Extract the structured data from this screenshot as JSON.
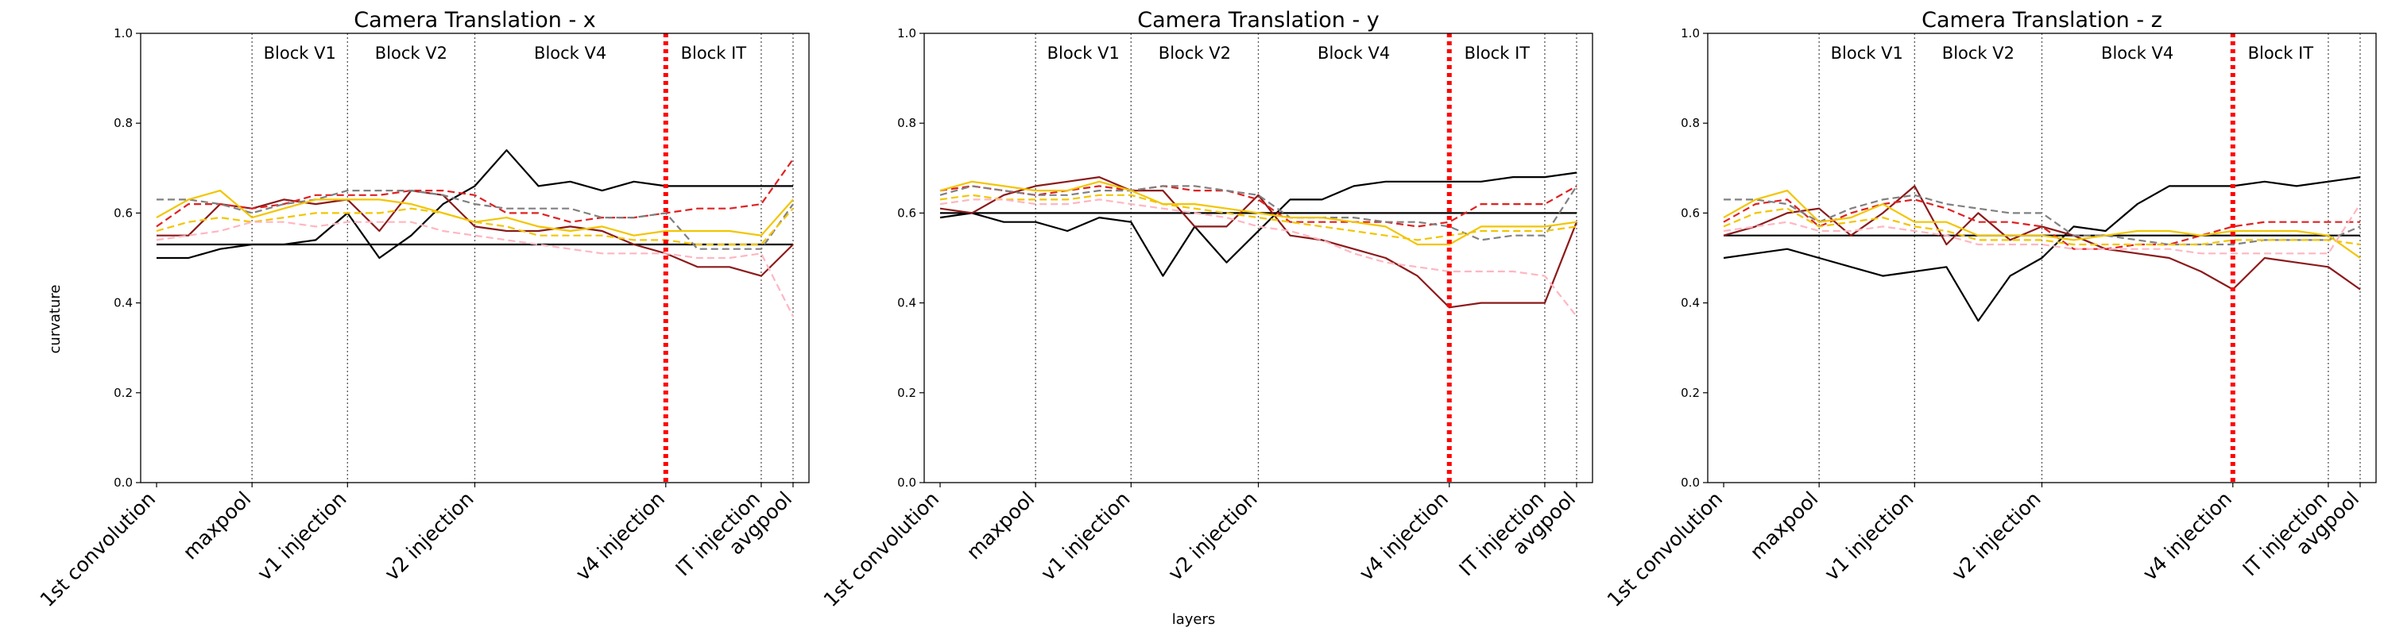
{
  "figure": {
    "ylabel": "curvature",
    "xlabel": "layers"
  },
  "chart_data": [
    {
      "type": "line",
      "title": "Camera Translation - x",
      "ylabel": "curvature",
      "xlabel": "layers",
      "ylim": [
        0.0,
        1.0
      ],
      "yticks": [
        "0.0",
        "0.2",
        "0.4",
        "0.6",
        "0.8",
        "1.0"
      ],
      "xlim": [
        -0.5,
        20.5
      ],
      "xticks": [
        {
          "x": 0,
          "label": "1st convolution"
        },
        {
          "x": 3,
          "label": "maxpool"
        },
        {
          "x": 6,
          "label": "v1 injection"
        },
        {
          "x": 10,
          "label": "v2 injection"
        },
        {
          "x": 16,
          "label": "v4 injection"
        },
        {
          "x": 19,
          "label": "IT injection"
        },
        {
          "x": 20,
          "label": "avgpool"
        }
      ],
      "block_lines": [
        3,
        6,
        10,
        19,
        20
      ],
      "red_line": 16,
      "blocks": [
        {
          "label": "Block V1",
          "x": 4.5
        },
        {
          "label": "Block V2",
          "x": 8
        },
        {
          "label": "Block V4",
          "x": 13
        },
        {
          "label": "Block IT",
          "x": 17.5
        }
      ],
      "series": [
        {
          "color": "#000000",
          "style": "solid",
          "values": [
            0.53,
            0.53,
            0.53,
            0.53,
            0.53,
            0.53,
            0.53,
            0.53,
            0.53,
            0.53,
            0.53,
            0.53,
            0.53,
            0.53,
            0.53,
            0.53,
            0.53,
            0.53,
            0.53,
            0.53,
            0.53
          ]
        },
        {
          "color": "#000000",
          "style": "solid",
          "values": [
            0.5,
            0.5,
            0.52,
            0.53,
            0.53,
            0.54,
            0.6,
            0.5,
            0.55,
            0.62,
            0.66,
            0.74,
            0.66,
            0.67,
            0.65,
            0.67,
            0.66,
            0.66,
            0.66,
            0.66,
            0.66
          ]
        },
        {
          "color": "#8b1a1a",
          "style": "solid",
          "values": [
            0.55,
            0.55,
            0.62,
            0.61,
            0.63,
            0.62,
            0.63,
            0.56,
            0.65,
            0.64,
            0.57,
            0.56,
            0.56,
            0.57,
            0.56,
            0.53,
            0.51,
            0.48,
            0.48,
            0.46,
            0.53
          ]
        },
        {
          "color": "#e02020",
          "style": "dashed",
          "values": [
            0.57,
            0.62,
            0.62,
            0.61,
            0.62,
            0.64,
            0.64,
            0.64,
            0.65,
            0.65,
            0.64,
            0.6,
            0.6,
            0.58,
            0.59,
            0.59,
            0.6,
            0.61,
            0.61,
            0.62,
            0.72
          ]
        },
        {
          "color": "#808080",
          "style": "dashed",
          "values": [
            0.63,
            0.63,
            0.62,
            0.6,
            0.62,
            0.63,
            0.65,
            0.65,
            0.65,
            0.64,
            0.62,
            0.61,
            0.61,
            0.61,
            0.59,
            0.59,
            0.6,
            0.52,
            0.52,
            0.52,
            0.62
          ]
        },
        {
          "color": "#f2c500",
          "style": "solid",
          "values": [
            0.59,
            0.63,
            0.65,
            0.59,
            0.61,
            0.63,
            0.63,
            0.63,
            0.62,
            0.6,
            0.58,
            0.59,
            0.57,
            0.56,
            0.57,
            0.55,
            0.56,
            0.56,
            0.56,
            0.55,
            0.63
          ]
        },
        {
          "color": "#f2c500",
          "style": "dashed",
          "values": [
            0.56,
            0.58,
            0.59,
            0.58,
            0.59,
            0.6,
            0.6,
            0.6,
            0.61,
            0.6,
            0.58,
            0.57,
            0.55,
            0.55,
            0.55,
            0.54,
            0.54,
            0.53,
            0.53,
            0.53,
            0.61
          ]
        },
        {
          "color": "#ffb6c1",
          "style": "dashed",
          "values": [
            0.54,
            0.55,
            0.56,
            0.58,
            0.58,
            0.57,
            0.58,
            0.58,
            0.58,
            0.56,
            0.55,
            0.54,
            0.53,
            0.52,
            0.51,
            0.51,
            0.51,
            0.5,
            0.5,
            0.51,
            0.37
          ]
        }
      ]
    },
    {
      "type": "line",
      "title": "Camera Translation - y",
      "ylabel": "curvature",
      "xlabel": "layers",
      "ylim": [
        0.0,
        1.0
      ],
      "yticks": [
        "0.0",
        "0.2",
        "0.4",
        "0.6",
        "0.8",
        "1.0"
      ],
      "xlim": [
        -0.5,
        20.5
      ],
      "xticks": [
        {
          "x": 0,
          "label": "1st convolution"
        },
        {
          "x": 3,
          "label": "maxpool"
        },
        {
          "x": 6,
          "label": "v1 injection"
        },
        {
          "x": 10,
          "label": "v2 injection"
        },
        {
          "x": 16,
          "label": "v4 injection"
        },
        {
          "x": 19,
          "label": "IT injection"
        },
        {
          "x": 20,
          "label": "avgpool"
        }
      ],
      "block_lines": [
        3,
        6,
        10,
        19,
        20
      ],
      "red_line": 16,
      "blocks": [
        {
          "label": "Block V1",
          "x": 4.5
        },
        {
          "label": "Block V2",
          "x": 8
        },
        {
          "label": "Block V4",
          "x": 13
        },
        {
          "label": "Block IT",
          "x": 17.5
        }
      ],
      "series": [
        {
          "color": "#000000",
          "style": "solid",
          "values": [
            0.6,
            0.6,
            0.6,
            0.6,
            0.6,
            0.6,
            0.6,
            0.6,
            0.6,
            0.6,
            0.6,
            0.6,
            0.6,
            0.6,
            0.6,
            0.6,
            0.6,
            0.6,
            0.6,
            0.6,
            0.6
          ]
        },
        {
          "color": "#000000",
          "style": "solid",
          "values": [
            0.59,
            0.6,
            0.58,
            0.58,
            0.56,
            0.59,
            0.58,
            0.46,
            0.57,
            0.49,
            0.56,
            0.63,
            0.63,
            0.66,
            0.67,
            0.67,
            0.67,
            0.67,
            0.68,
            0.68,
            0.69
          ]
        },
        {
          "color": "#8b1a1a",
          "style": "solid",
          "values": [
            0.61,
            0.6,
            0.64,
            0.66,
            0.67,
            0.68,
            0.65,
            0.65,
            0.57,
            0.57,
            0.64,
            0.55,
            0.54,
            0.52,
            0.5,
            0.46,
            0.39,
            0.4,
            0.4,
            0.4,
            0.58
          ]
        },
        {
          "color": "#e02020",
          "style": "dashed",
          "values": [
            0.65,
            0.66,
            0.65,
            0.64,
            0.65,
            0.66,
            0.65,
            0.66,
            0.65,
            0.65,
            0.63,
            0.58,
            0.58,
            0.58,
            0.58,
            0.57,
            0.58,
            0.62,
            0.62,
            0.62,
            0.66
          ]
        },
        {
          "color": "#808080",
          "style": "dashed",
          "values": [
            0.64,
            0.66,
            0.65,
            0.64,
            0.64,
            0.65,
            0.65,
            0.66,
            0.66,
            0.65,
            0.64,
            0.59,
            0.59,
            0.59,
            0.58,
            0.58,
            0.57,
            0.54,
            0.55,
            0.55,
            0.66
          ]
        },
        {
          "color": "#f2c500",
          "style": "solid",
          "values": [
            0.65,
            0.67,
            0.66,
            0.65,
            0.65,
            0.67,
            0.65,
            0.62,
            0.62,
            0.61,
            0.6,
            0.59,
            0.59,
            0.58,
            0.57,
            0.53,
            0.53,
            0.57,
            0.57,
            0.57,
            0.58
          ]
        },
        {
          "color": "#f2c500",
          "style": "dashed",
          "values": [
            0.63,
            0.64,
            0.63,
            0.63,
            0.63,
            0.64,
            0.64,
            0.62,
            0.61,
            0.6,
            0.59,
            0.58,
            0.57,
            0.56,
            0.55,
            0.54,
            0.55,
            0.56,
            0.56,
            0.56,
            0.57
          ]
        },
        {
          "color": "#ffb6c1",
          "style": "dashed",
          "values": [
            0.62,
            0.63,
            0.63,
            0.62,
            0.62,
            0.63,
            0.62,
            0.61,
            0.6,
            0.59,
            0.57,
            0.56,
            0.54,
            0.51,
            0.49,
            0.48,
            0.47,
            0.47,
            0.47,
            0.46,
            0.37
          ]
        }
      ]
    },
    {
      "type": "line",
      "title": "Camera Translation - z",
      "ylabel": "curvature",
      "xlabel": "layers",
      "ylim": [
        0.0,
        1.0
      ],
      "yticks": [
        "0.0",
        "0.2",
        "0.4",
        "0.6",
        "0.8",
        "1.0"
      ],
      "xlim": [
        -0.5,
        20.5
      ],
      "xticks": [
        {
          "x": 0,
          "label": "1st convolution"
        },
        {
          "x": 3,
          "label": "maxpool"
        },
        {
          "x": 6,
          "label": "v1 injection"
        },
        {
          "x": 10,
          "label": "v2 injection"
        },
        {
          "x": 16,
          "label": "v4 injection"
        },
        {
          "x": 19,
          "label": "IT injection"
        },
        {
          "x": 20,
          "label": "avgpool"
        }
      ],
      "block_lines": [
        3,
        6,
        10,
        19,
        20
      ],
      "red_line": 16,
      "blocks": [
        {
          "label": "Block V1",
          "x": 4.5
        },
        {
          "label": "Block V2",
          "x": 8
        },
        {
          "label": "Block V4",
          "x": 13
        },
        {
          "label": "Block IT",
          "x": 17.5
        }
      ],
      "series": [
        {
          "color": "#000000",
          "style": "solid",
          "values": [
            0.55,
            0.55,
            0.55,
            0.55,
            0.55,
            0.55,
            0.55,
            0.55,
            0.55,
            0.55,
            0.55,
            0.55,
            0.55,
            0.55,
            0.55,
            0.55,
            0.55,
            0.55,
            0.55,
            0.55,
            0.55
          ]
        },
        {
          "color": "#000000",
          "style": "solid",
          "values": [
            0.5,
            0.51,
            0.52,
            0.5,
            0.48,
            0.46,
            0.47,
            0.48,
            0.36,
            0.46,
            0.5,
            0.57,
            0.56,
            0.62,
            0.66,
            0.66,
            0.66,
            0.67,
            0.66,
            0.67,
            0.68
          ]
        },
        {
          "color": "#8b1a1a",
          "style": "solid",
          "values": [
            0.55,
            0.57,
            0.6,
            0.61,
            0.55,
            0.6,
            0.66,
            0.53,
            0.6,
            0.54,
            0.57,
            0.55,
            0.52,
            0.51,
            0.5,
            0.47,
            0.43,
            0.5,
            0.49,
            0.48,
            0.43
          ]
        },
        {
          "color": "#e02020",
          "style": "dashed",
          "values": [
            0.58,
            0.62,
            0.63,
            0.57,
            0.6,
            0.62,
            0.63,
            0.61,
            0.58,
            0.58,
            0.57,
            0.52,
            0.52,
            0.53,
            0.53,
            0.55,
            0.57,
            0.58,
            0.58,
            0.58,
            0.58
          ]
        },
        {
          "color": "#808080",
          "style": "dashed",
          "values": [
            0.63,
            0.63,
            0.62,
            0.58,
            0.61,
            0.63,
            0.64,
            0.62,
            0.61,
            0.6,
            0.6,
            0.55,
            0.55,
            0.54,
            0.53,
            0.53,
            0.53,
            0.54,
            0.54,
            0.54,
            0.57
          ]
        },
        {
          "color": "#f2c500",
          "style": "solid",
          "values": [
            0.59,
            0.63,
            0.65,
            0.58,
            0.59,
            0.62,
            0.58,
            0.58,
            0.55,
            0.55,
            0.55,
            0.54,
            0.55,
            0.56,
            0.56,
            0.55,
            0.56,
            0.56,
            0.56,
            0.55,
            0.5
          ]
        },
        {
          "color": "#f2c500",
          "style": "dashed",
          "values": [
            0.57,
            0.6,
            0.61,
            0.57,
            0.58,
            0.59,
            0.57,
            0.56,
            0.54,
            0.54,
            0.54,
            0.53,
            0.53,
            0.53,
            0.53,
            0.53,
            0.54,
            0.54,
            0.54,
            0.54,
            0.53
          ]
        },
        {
          "color": "#ffb6c1",
          "style": "dashed",
          "values": [
            0.56,
            0.57,
            0.58,
            0.56,
            0.56,
            0.57,
            0.56,
            0.55,
            0.53,
            0.53,
            0.53,
            0.52,
            0.52,
            0.52,
            0.52,
            0.51,
            0.51,
            0.51,
            0.51,
            0.51,
            0.62
          ]
        }
      ]
    }
  ]
}
